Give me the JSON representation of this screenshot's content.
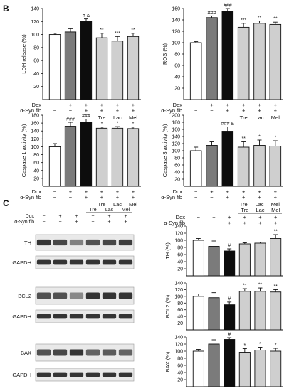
{
  "panel_labels": {
    "B": "B",
    "C": "C"
  },
  "colors": {
    "white": "#ffffff",
    "dgray": "#7b7b7b",
    "black": "#0d0d0d",
    "lgray": "#cfcfcf",
    "band": "#2a2a2a"
  },
  "row_labels": {
    "dox": "Dox",
    "syn": "α-Syn fib"
  },
  "signs": {
    "b": [
      [
        "−",
        "−"
      ],
      [
        "+",
        "−"
      ],
      [
        "+",
        "+"
      ],
      [
        "+",
        "+"
      ],
      [
        "+",
        "+"
      ],
      [
        "+",
        "+"
      ]
    ],
    "cb": [
      [
        "−",
        "−"
      ],
      [
        "+",
        "−"
      ],
      [
        "+",
        "+"
      ],
      [
        "+",
        "+"
      ],
      [
        "+",
        "+"
      ],
      [
        "+",
        "+"
      ]
    ]
  },
  "treatments": [
    "Tre",
    "Lac",
    "Mel"
  ],
  "chart_data": [
    {
      "type": "bar",
      "id": "ldh",
      "title": "",
      "ylabel": "LDH release (%)",
      "ylim": [
        0,
        140
      ],
      "yticks": [
        20,
        40,
        60,
        80,
        100,
        120,
        140
      ],
      "values": [
        100,
        104,
        120,
        95,
        90,
        97
      ],
      "errors": [
        2,
        5,
        4,
        7,
        7,
        5
      ],
      "annotations": [
        "",
        "",
        "# &",
        "**",
        "***",
        "**"
      ]
    },
    {
      "type": "bar",
      "id": "ros",
      "title": "",
      "ylabel": "ROS (%)",
      "ylim": [
        0,
        160
      ],
      "yticks": [
        20,
        40,
        60,
        80,
        100,
        120,
        140,
        160
      ],
      "values": [
        100,
        144,
        155,
        127,
        134,
        132
      ],
      "errors": [
        2,
        3,
        5,
        7,
        4,
        4
      ],
      "annotations": [
        "",
        "###",
        "###",
        "***",
        "**",
        "**"
      ]
    },
    {
      "type": "bar",
      "id": "casp1",
      "title": "",
      "ylabel": "Caspase 1 activity (%)",
      "ylim": [
        0,
        180
      ],
      "yticks": [
        20,
        40,
        60,
        80,
        100,
        120,
        140,
        160,
        180
      ],
      "values": [
        100,
        152,
        163,
        147,
        147,
        146
      ],
      "errors": [
        8,
        10,
        7,
        3,
        4,
        4
      ],
      "annotations": [
        "",
        "###",
        "###",
        "*",
        "*",
        "*"
      ]
    },
    {
      "type": "bar",
      "id": "casp3",
      "title": "",
      "ylabel": "Caspase 3 activity (%)",
      "ylim": [
        0,
        200
      ],
      "yticks": [
        20,
        40,
        60,
        80,
        100,
        120,
        140,
        160,
        180,
        200
      ],
      "values": [
        100,
        115,
        155,
        110,
        115,
        113
      ],
      "errors": [
        10,
        10,
        12,
        15,
        15,
        15
      ],
      "annotations": [
        "",
        "",
        "### &",
        "**",
        "*",
        "*"
      ]
    },
    {
      "type": "bar",
      "id": "th",
      "title": "",
      "ylabel": "TH (%)",
      "ylim": [
        0,
        140
      ],
      "yticks": [
        20,
        40,
        60,
        80,
        100,
        120,
        140
      ],
      "values": [
        100,
        83,
        70,
        90,
        92,
        105
      ],
      "errors": [
        5,
        15,
        6,
        3,
        3,
        11
      ],
      "annotations": [
        "",
        "",
        "#",
        "",
        "",
        "**"
      ]
    },
    {
      "type": "bar",
      "id": "bcl2",
      "title": "",
      "ylabel": "BCL2 (%)",
      "ylim": [
        0,
        140
      ],
      "yticks": [
        20,
        40,
        60,
        80,
        100,
        120,
        140
      ],
      "values": [
        100,
        96,
        75,
        115,
        115,
        113
      ],
      "errors": [
        7,
        15,
        8,
        8,
        10,
        7
      ],
      "annotations": [
        "",
        "",
        "#",
        "**",
        "**",
        "**"
      ]
    },
    {
      "type": "bar",
      "id": "bax",
      "title": "",
      "ylabel": "BAX (%)",
      "ylim": [
        0,
        140
      ],
      "yticks": [
        20,
        40,
        60,
        80,
        100,
        120,
        140
      ],
      "values": [
        100,
        120,
        133,
        97,
        103,
        100
      ],
      "errors": [
        5,
        12,
        5,
        10,
        8,
        8
      ],
      "annotations": [
        "",
        "",
        "#",
        "*",
        "*",
        "*"
      ]
    }
  ],
  "blots": [
    {
      "id": "th",
      "label": "TH",
      "intensity": [
        0.95,
        0.85,
        0.55,
        0.8,
        0.85,
        0.9
      ]
    },
    {
      "id": "gapdh1",
      "label": "GAPDH",
      "intensity": [
        0.95,
        0.95,
        0.95,
        0.95,
        0.95,
        0.95
      ]
    },
    {
      "id": "bcl2",
      "label": "BCL2",
      "intensity": [
        0.8,
        0.8,
        0.5,
        0.95,
        0.95,
        0.95
      ]
    },
    {
      "id": "gapdh2",
      "label": "GAPDH",
      "intensity": [
        0.95,
        0.95,
        0.95,
        0.95,
        0.95,
        0.95
      ]
    },
    {
      "id": "bax",
      "label": "BAX",
      "intensity": [
        0.8,
        0.85,
        0.95,
        0.7,
        0.75,
        0.7
      ]
    },
    {
      "id": "gapdh3",
      "label": "GAPDH",
      "intensity": [
        0.95,
        0.95,
        0.95,
        0.95,
        0.95,
        0.95
      ]
    }
  ]
}
